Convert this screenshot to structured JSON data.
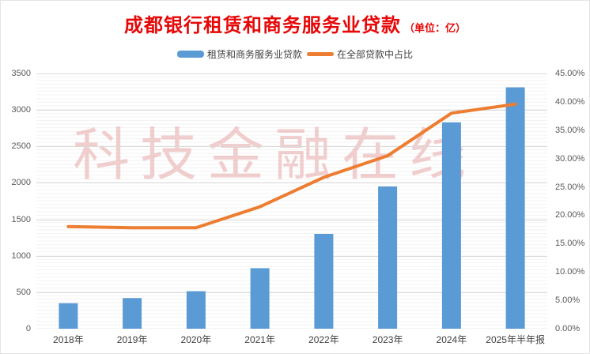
{
  "title": {
    "main": "成都银行租赁和商务服务业贷款",
    "unit": "（单位：亿）"
  },
  "legend": [
    {
      "label": "租赁和商务服务业贷款",
      "marker": "bar-swatch",
      "color": "#5B9BD5"
    },
    {
      "label": "在全部贷款中占比",
      "marker": "line-swatch",
      "color": "#ED7D31"
    }
  ],
  "watermark": "科技金融在线",
  "colors": {
    "bar": "#5B9BD5",
    "line": "#ED7D31",
    "title": "#e60808",
    "major_grid": "#d9d9d9",
    "axis_line": "#bfbfbf",
    "watermark": "#e08a8a"
  },
  "chart_data": {
    "type": "bar",
    "subtype": "bar+line combo, dual axis",
    "title": "成都银行租赁和商务服务业贷款（单位：亿）",
    "categories": [
      "2018年",
      "2019年",
      "2020年",
      "2021年",
      "2022年",
      "2023年",
      "2024年",
      "2025年半年报"
    ],
    "series": [
      {
        "name": "租赁和商务服务业贷款",
        "type": "bar",
        "axis": "left",
        "color": "#5B9BD5",
        "values": [
          350,
          420,
          515,
          830,
          1300,
          1950,
          2830,
          3310
        ]
      },
      {
        "name": "在全部贷款中占比",
        "type": "line",
        "axis": "right",
        "color": "#ED7D31",
        "values": [
          18.0,
          17.8,
          17.8,
          21.5,
          26.7,
          30.5,
          38.0,
          39.6
        ]
      }
    ],
    "left_axis": {
      "min": 0,
      "max": 3500,
      "step": 500,
      "tick_labels": [
        "0",
        "500",
        "1000",
        "1500",
        "2000",
        "2500",
        "3000",
        "3500"
      ]
    },
    "right_axis": {
      "min": 0,
      "max": 45,
      "step": 5,
      "tick_labels": [
        "0.00%",
        "5.00%",
        "10.00%",
        "15.00%",
        "20.00%",
        "25.00%",
        "30.00%",
        "35.00%",
        "40.00%",
        "45.00%"
      ]
    },
    "grid": "horizontal major + faint minor",
    "legend_position": "top-center"
  }
}
